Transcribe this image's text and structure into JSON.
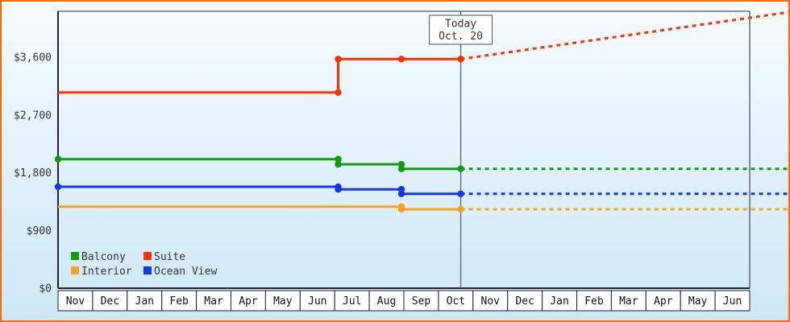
{
  "meta": {
    "border_color": "#ff6a00",
    "bg_top": "#f6fbff",
    "bg_bottom": "#cde7f8",
    "axis_color": "#222233",
    "text_color": "#333333",
    "month_box_fill": "#ffffff",
    "month_box_border": "#222222",
    "today_line_color": "#5a6472",
    "today_box_fill": "#fcfeff",
    "today_box_border": "#49525e"
  },
  "today": {
    "label_line1": "Today",
    "label_line2": "Oct. 20",
    "x_month": 11.645
  },
  "chart_data": {
    "type": "line",
    "x_categories": [
      "Nov",
      "Dec",
      "Jan",
      "Feb",
      "Mar",
      "Apr",
      "May",
      "Jun",
      "Jul",
      "Aug",
      "Sep",
      "Oct",
      "Nov",
      "Dec",
      "Jan",
      "Feb",
      "Mar",
      "Apr",
      "May",
      "Jun"
    ],
    "y_ticks": [
      {
        "value": 0,
        "label": "$0"
      },
      {
        "value": 900,
        "label": "$900"
      },
      {
        "value": 1800,
        "label": "$1,800"
      },
      {
        "value": 2700,
        "label": "$2,700"
      },
      {
        "value": 3600,
        "label": "$3,600"
      }
    ],
    "ylim": [
      0,
      4315
    ],
    "grid": false,
    "legend_position": "bottom-left-inside",
    "series": [
      {
        "name": "Interior",
        "color": "#f5a11f",
        "solid": [
          [
            0,
            1270
          ],
          [
            9.93,
            1270
          ],
          [
            9.93,
            1230
          ],
          [
            11.645,
            1230
          ]
        ],
        "points": [
          [
            9.93,
            1270
          ],
          [
            9.93,
            1230
          ],
          [
            11.645,
            1230
          ]
        ],
        "projection": [
          [
            11.645,
            1230
          ],
          [
            21.12,
            1230
          ]
        ]
      },
      {
        "name": "Ocean View",
        "color": "#1238ef",
        "solid": [
          [
            0,
            1580
          ],
          [
            8.1,
            1580
          ],
          [
            8.1,
            1540
          ],
          [
            9.93,
            1540
          ],
          [
            9.93,
            1470
          ],
          [
            11.645,
            1470
          ]
        ],
        "points": [
          [
            0,
            1580
          ],
          [
            8.1,
            1580
          ],
          [
            8.1,
            1540
          ],
          [
            9.93,
            1540
          ],
          [
            9.93,
            1470
          ],
          [
            11.645,
            1470
          ]
        ],
        "projection": [
          [
            11.645,
            1470
          ],
          [
            21.12,
            1470
          ]
        ]
      },
      {
        "name": "Balcony",
        "color": "#129b12",
        "solid": [
          [
            0,
            2010
          ],
          [
            8.1,
            2010
          ],
          [
            8.1,
            1930
          ],
          [
            9.93,
            1930
          ],
          [
            9.93,
            1860
          ],
          [
            11.645,
            1860
          ]
        ],
        "points": [
          [
            0,
            2010
          ],
          [
            8.1,
            2010
          ],
          [
            8.1,
            1930
          ],
          [
            9.93,
            1930
          ],
          [
            9.93,
            1860
          ],
          [
            11.645,
            1860
          ]
        ],
        "projection": [
          [
            11.645,
            1860
          ],
          [
            21.12,
            1860
          ]
        ]
      },
      {
        "name": "Suite",
        "color": "#ff3200",
        "solid": [
          [
            0,
            3050
          ],
          [
            8.1,
            3050
          ],
          [
            8.1,
            3570
          ],
          [
            11.645,
            3570
          ]
        ],
        "points": [
          [
            8.1,
            3050
          ],
          [
            8.1,
            3570
          ],
          [
            9.93,
            3570
          ],
          [
            11.645,
            3570
          ]
        ],
        "projection": [
          [
            11.645,
            3570
          ],
          [
            21.12,
            4300
          ]
        ]
      }
    ],
    "legend": [
      {
        "label": "Balcony",
        "color": "#129b12"
      },
      {
        "label": "Suite",
        "color": "#ff3200"
      },
      {
        "label": "Interior",
        "color": "#f5a11f"
      },
      {
        "label": "Ocean View",
        "color": "#1238ef"
      }
    ]
  }
}
